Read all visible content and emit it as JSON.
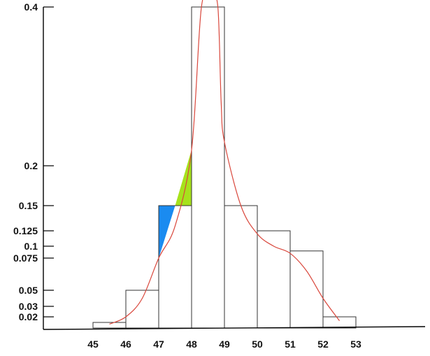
{
  "chart_data": {
    "type": "bar",
    "title": "",
    "xlabel": "",
    "ylabel": "",
    "x_ticks": [
      "45",
      "46",
      "47",
      "48",
      "49",
      "50",
      "51",
      "52",
      "53"
    ],
    "y_ticks": [
      {
        "value": 0.4,
        "label": "0.4"
      },
      {
        "value": 0.2,
        "label": "0.2"
      },
      {
        "value": 0.15,
        "label": "0.15"
      },
      {
        "value": 0.125,
        "label": "0.125"
      },
      {
        "value": 0.1,
        "label": "0.1"
      },
      {
        "value": 0.075,
        "label": "0.075"
      },
      {
        "value": 0.05,
        "label": "0.05"
      },
      {
        "value": 0.03,
        "label": "0.03"
      },
      {
        "value": 0.02,
        "label": "0.02"
      }
    ],
    "bars": [
      {
        "x0": 45.0,
        "x1": 46.0,
        "value": 0.01
      },
      {
        "x0": 46.0,
        "x1": 47.0,
        "value": 0.05
      },
      {
        "x0": 47.0,
        "x1": 48.0,
        "value": 0.15
      },
      {
        "x0": 48.0,
        "x1": 49.0,
        "value": 0.4
      },
      {
        "x0": 49.0,
        "x1": 50.0,
        "value": 0.15
      },
      {
        "x0": 50.0,
        "x1": 51.0,
        "value": 0.125
      },
      {
        "x0": 51.0,
        "x1": 52.0,
        "value": 0.09
      },
      {
        "x0": 52.0,
        "x1": 53.0,
        "value": 0.02
      }
    ],
    "curve": [
      [
        45.5,
        0.007
      ],
      [
        46.0,
        0.02
      ],
      [
        46.5,
        0.04
      ],
      [
        47.0,
        0.075
      ],
      [
        47.5,
        0.13
      ],
      [
        48.0,
        0.22
      ],
      [
        48.3,
        0.4
      ],
      [
        48.6,
        0.41
      ],
      [
        48.8,
        0.4
      ],
      [
        48.9,
        0.28
      ],
      [
        49.0,
        0.23
      ],
      [
        49.5,
        0.15
      ],
      [
        50.0,
        0.12
      ],
      [
        50.5,
        0.1
      ],
      [
        51.0,
        0.085
      ],
      [
        51.5,
        0.065
      ],
      [
        52.0,
        0.04
      ],
      [
        52.5,
        0.013
      ]
    ],
    "shaded_regions": [
      {
        "color": "#1a8bf0",
        "x_range": [
          47.0,
          47.5
        ],
        "points": [
          [
            47.0,
            0.15
          ],
          [
            47.5,
            0.15
          ],
          [
            47.0,
            0.075
          ]
        ]
      },
      {
        "color": "#a6e21c",
        "x_range": [
          47.5,
          48.0
        ],
        "points": [
          [
            47.5,
            0.15
          ],
          [
            48.0,
            0.15
          ],
          [
            48.0,
            0.22
          ]
        ]
      }
    ],
    "xlim": [
      44.2,
      55.1
    ],
    "ylim": [
      0,
      0.4
    ],
    "grid": false,
    "colors": {
      "curve": "#d9473c",
      "bar_edge": "#333333",
      "axis": "#000000"
    }
  }
}
